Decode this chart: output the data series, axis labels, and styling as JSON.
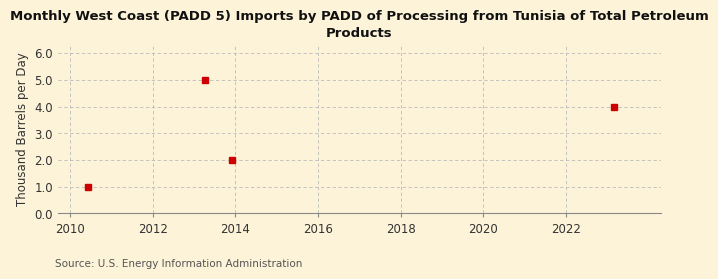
{
  "title": "Monthly West Coast (PADD 5) Imports by PADD of Processing from Tunisia of Total Petroleum\nProducts",
  "ylabel": "Thousand Barrels per Day",
  "source": "Source: U.S. Energy Information Administration",
  "data_x": [
    2010.42,
    2013.25,
    2013.92,
    2023.17
  ],
  "data_y": [
    1.0,
    5.0,
    2.0,
    4.0
  ],
  "marker_color": "#cc0000",
  "marker_size": 4.5,
  "xlim": [
    2009.7,
    2024.3
  ],
  "ylim": [
    0.0,
    6.3
  ],
  "yticks": [
    0.0,
    1.0,
    2.0,
    3.0,
    4.0,
    5.0,
    6.0
  ],
  "xticks": [
    2010,
    2012,
    2014,
    2016,
    2018,
    2020,
    2022
  ],
  "bg_color": "#fdf3d8",
  "plot_bg_color": "#fdf9ee",
  "grid_color": "#bbbbbb",
  "title_fontsize": 9.5,
  "label_fontsize": 8.5,
  "tick_fontsize": 8.5,
  "source_fontsize": 7.5
}
